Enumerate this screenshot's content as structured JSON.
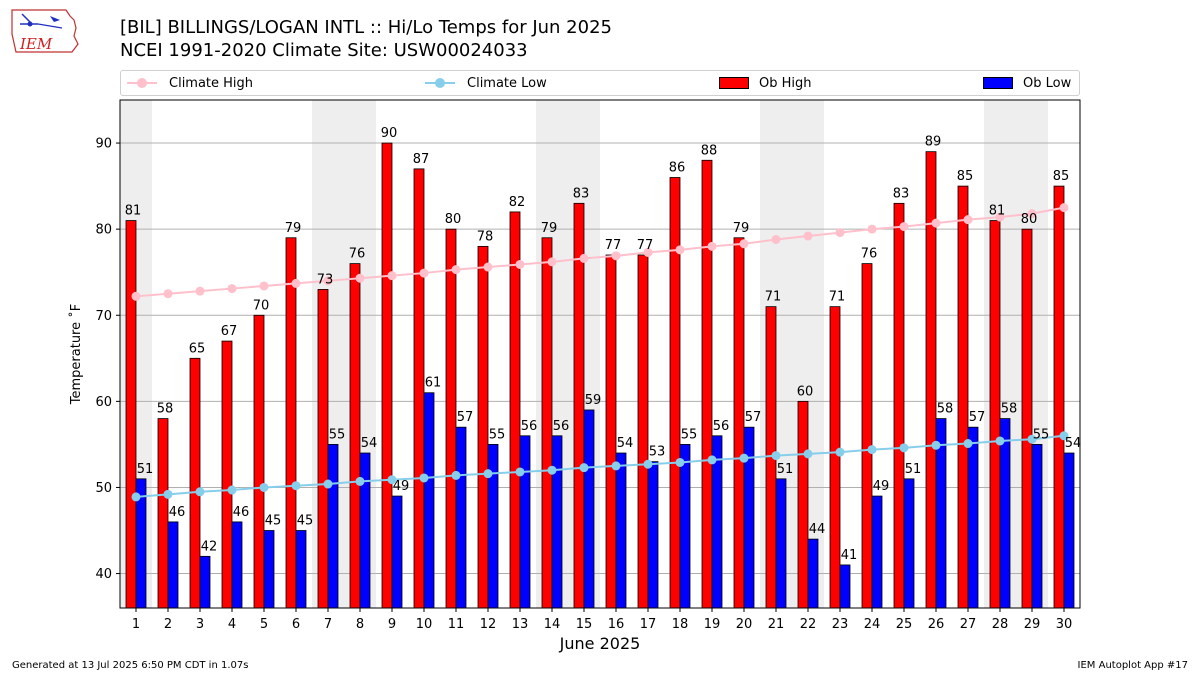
{
  "header": {
    "logo_text": "IEM",
    "title_line1": "[BIL] BILLINGS/LOGAN INTL :: Hi/Lo Temps for Jun 2025",
    "title_line2": "NCEI 1991-2020 Climate Site: USW00024033"
  },
  "legend": {
    "climate_high": "Climate High",
    "climate_low": "Climate Low",
    "ob_high": "Ob High",
    "ob_low": "Ob Low"
  },
  "colors": {
    "climate_high": "#ffc0cb",
    "climate_low": "#87ceeb",
    "ob_high": "#ff0000",
    "ob_low": "#0000ff",
    "weekend_band": "#eeeeee",
    "grid": "#b0b0b0"
  },
  "footer": {
    "generated": "Generated at 13 Jul 2025 6:50 PM CDT in 1.07s",
    "app": "IEM Autoplot App #17"
  },
  "chart_data": {
    "type": "bar",
    "xlabel": "June 2025",
    "ylabel": "Temperature ˚F",
    "ylim": [
      36,
      95
    ],
    "yticks": [
      40,
      50,
      60,
      70,
      80,
      90
    ],
    "grid": true,
    "legend_position": "top",
    "categories": [
      "1",
      "2",
      "3",
      "4",
      "5",
      "6",
      "7",
      "8",
      "9",
      "10",
      "11",
      "12",
      "13",
      "14",
      "15",
      "16",
      "17",
      "18",
      "19",
      "20",
      "21",
      "22",
      "23",
      "24",
      "25",
      "26",
      "27",
      "28",
      "29",
      "30"
    ],
    "shaded_days": [
      1,
      7,
      8,
      14,
      15,
      21,
      22,
      28,
      29
    ],
    "series": [
      {
        "name": "Ob High",
        "kind": "bar",
        "values": [
          81,
          58,
          65,
          67,
          70,
          79,
          73,
          76,
          90,
          87,
          80,
          78,
          82,
          79,
          83,
          77,
          77,
          86,
          88,
          79,
          71,
          60,
          71,
          76,
          83,
          89,
          85,
          81,
          80,
          85
        ]
      },
      {
        "name": "Ob Low",
        "kind": "bar",
        "values": [
          51,
          46,
          42,
          46,
          45,
          45,
          55,
          54,
          49,
          61,
          57,
          55,
          56,
          56,
          59,
          54,
          53,
          55,
          56,
          57,
          51,
          44,
          41,
          49,
          51,
          58,
          57,
          58,
          55,
          54
        ]
      },
      {
        "name": "Climate High",
        "kind": "line",
        "values": [
          72.2,
          72.5,
          72.8,
          73.1,
          73.4,
          73.7,
          74.0,
          74.3,
          74.6,
          74.9,
          75.3,
          75.6,
          75.9,
          76.2,
          76.6,
          76.9,
          77.3,
          77.6,
          78.0,
          78.3,
          78.8,
          79.2,
          79.6,
          80.0,
          80.3,
          80.7,
          81.1,
          81.4,
          81.8,
          82.5
        ]
      },
      {
        "name": "Climate Low",
        "kind": "line",
        "values": [
          48.9,
          49.2,
          49.5,
          49.7,
          50.0,
          50.2,
          50.4,
          50.7,
          50.9,
          51.1,
          51.4,
          51.6,
          51.8,
          52.0,
          52.3,
          52.5,
          52.7,
          52.9,
          53.2,
          53.4,
          53.7,
          53.9,
          54.1,
          54.4,
          54.6,
          54.9,
          55.1,
          55.4,
          55.6,
          56.0
        ]
      }
    ]
  }
}
